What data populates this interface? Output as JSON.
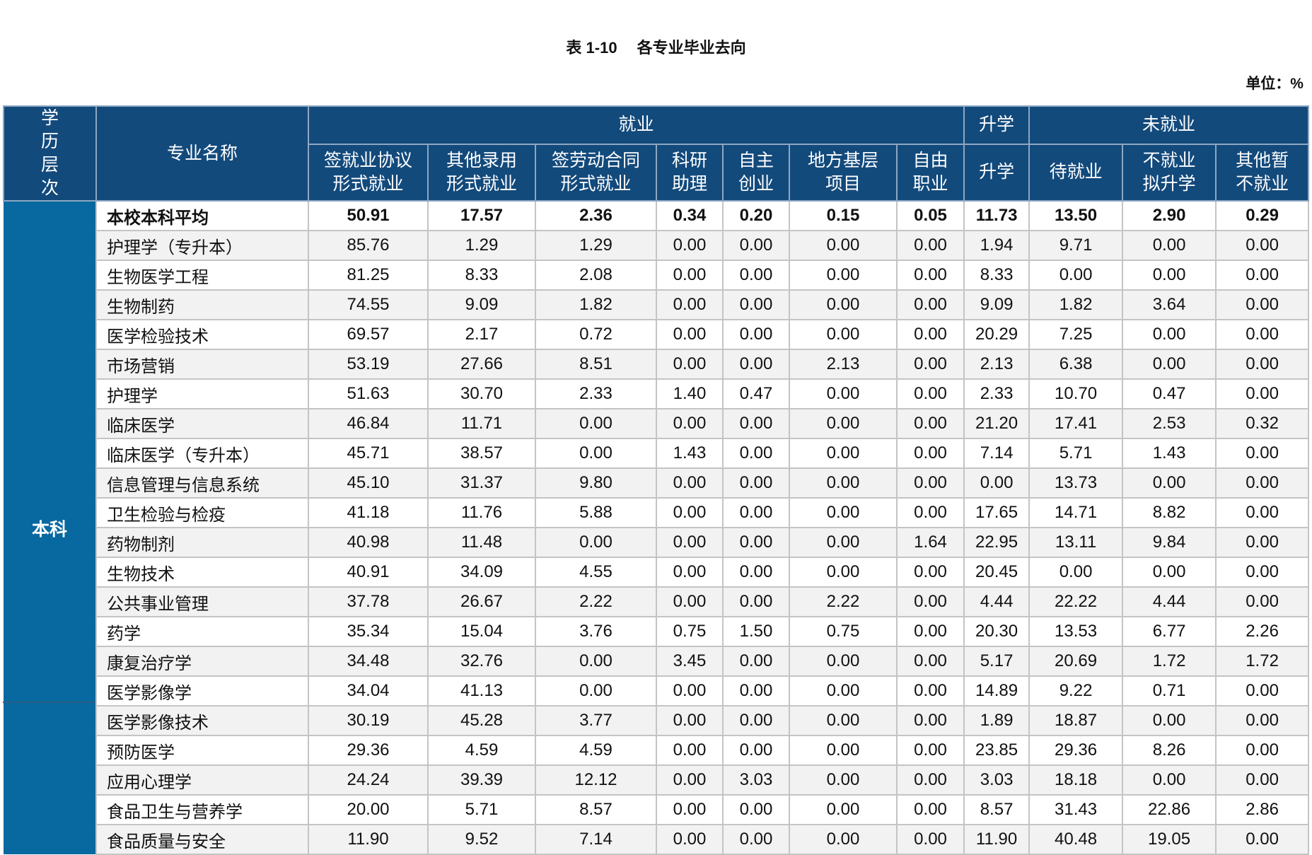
{
  "title": {
    "number": "表 1-10",
    "text": "各专业毕业去向"
  },
  "unit": "单位：%",
  "header": {
    "level": "学历层次",
    "major": "专业名称",
    "groups": [
      "就业",
      "升学",
      "未就业"
    ],
    "columns": [
      "签就业协议形式就业",
      "其他录用形式就业",
      "签劳动合同形式就业",
      "科研助理",
      "自主创业",
      "地方基层项目",
      "自由职业",
      "升学",
      "待就业",
      "不就业拟升学",
      "其他暂不就业"
    ]
  },
  "level_label": "本科",
  "rows": [
    {
      "name": "本校本科平均",
      "values": [
        "50.91",
        "17.57",
        "2.36",
        "0.34",
        "0.20",
        "0.15",
        "0.05",
        "11.73",
        "13.50",
        "2.90",
        "0.29"
      ]
    },
    {
      "name": "护理学（专升本）",
      "values": [
        "85.76",
        "1.29",
        "1.29",
        "0.00",
        "0.00",
        "0.00",
        "0.00",
        "1.94",
        "9.71",
        "0.00",
        "0.00"
      ]
    },
    {
      "name": "生物医学工程",
      "values": [
        "81.25",
        "8.33",
        "2.08",
        "0.00",
        "0.00",
        "0.00",
        "0.00",
        "8.33",
        "0.00",
        "0.00",
        "0.00"
      ]
    },
    {
      "name": "生物制药",
      "values": [
        "74.55",
        "9.09",
        "1.82",
        "0.00",
        "0.00",
        "0.00",
        "0.00",
        "9.09",
        "1.82",
        "3.64",
        "0.00"
      ]
    },
    {
      "name": "医学检验技术",
      "values": [
        "69.57",
        "2.17",
        "0.72",
        "0.00",
        "0.00",
        "0.00",
        "0.00",
        "20.29",
        "7.25",
        "0.00",
        "0.00"
      ]
    },
    {
      "name": "市场营销",
      "values": [
        "53.19",
        "27.66",
        "8.51",
        "0.00",
        "0.00",
        "2.13",
        "0.00",
        "2.13",
        "6.38",
        "0.00",
        "0.00"
      ]
    },
    {
      "name": "护理学",
      "values": [
        "51.63",
        "30.70",
        "2.33",
        "1.40",
        "0.47",
        "0.00",
        "0.00",
        "2.33",
        "10.70",
        "0.47",
        "0.00"
      ]
    },
    {
      "name": "临床医学",
      "values": [
        "46.84",
        "11.71",
        "0.00",
        "0.00",
        "0.00",
        "0.00",
        "0.00",
        "21.20",
        "17.41",
        "2.53",
        "0.32"
      ]
    },
    {
      "name": "临床医学（专升本）",
      "values": [
        "45.71",
        "38.57",
        "0.00",
        "1.43",
        "0.00",
        "0.00",
        "0.00",
        "7.14",
        "5.71",
        "1.43",
        "0.00"
      ]
    },
    {
      "name": "信息管理与信息系统",
      "values": [
        "45.10",
        "31.37",
        "9.80",
        "0.00",
        "0.00",
        "0.00",
        "0.00",
        "0.00",
        "13.73",
        "0.00",
        "0.00"
      ]
    },
    {
      "name": "卫生检验与检疫",
      "values": [
        "41.18",
        "11.76",
        "5.88",
        "0.00",
        "0.00",
        "0.00",
        "0.00",
        "17.65",
        "14.71",
        "8.82",
        "0.00"
      ]
    },
    {
      "name": "药物制剂",
      "values": [
        "40.98",
        "11.48",
        "0.00",
        "0.00",
        "0.00",
        "0.00",
        "1.64",
        "22.95",
        "13.11",
        "9.84",
        "0.00"
      ]
    },
    {
      "name": "生物技术",
      "values": [
        "40.91",
        "34.09",
        "4.55",
        "0.00",
        "0.00",
        "0.00",
        "0.00",
        "20.45",
        "0.00",
        "0.00",
        "0.00"
      ]
    },
    {
      "name": "公共事业管理",
      "values": [
        "37.78",
        "26.67",
        "2.22",
        "0.00",
        "0.00",
        "2.22",
        "0.00",
        "4.44",
        "22.22",
        "4.44",
        "0.00"
      ]
    },
    {
      "name": "药学",
      "values": [
        "35.34",
        "15.04",
        "3.76",
        "0.75",
        "1.50",
        "0.75",
        "0.00",
        "20.30",
        "13.53",
        "6.77",
        "2.26"
      ]
    },
    {
      "name": "康复治疗学",
      "values": [
        "34.48",
        "32.76",
        "0.00",
        "3.45",
        "0.00",
        "0.00",
        "0.00",
        "5.17",
        "20.69",
        "1.72",
        "1.72"
      ]
    },
    {
      "name": "医学影像学",
      "values": [
        "34.04",
        "41.13",
        "0.00",
        "0.00",
        "0.00",
        "0.00",
        "0.00",
        "14.89",
        "9.22",
        "0.71",
        "0.00"
      ]
    },
    {
      "name": "医学影像技术",
      "values": [
        "30.19",
        "45.28",
        "3.77",
        "0.00",
        "0.00",
        "0.00",
        "0.00",
        "1.89",
        "18.87",
        "0.00",
        "0.00"
      ]
    },
    {
      "name": "预防医学",
      "values": [
        "29.36",
        "4.59",
        "4.59",
        "0.00",
        "0.00",
        "0.00",
        "0.00",
        "23.85",
        "29.36",
        "8.26",
        "0.00"
      ]
    },
    {
      "name": "应用心理学",
      "values": [
        "24.24",
        "39.39",
        "12.12",
        "0.00",
        "3.03",
        "0.00",
        "0.00",
        "3.03",
        "18.18",
        "0.00",
        "0.00"
      ]
    },
    {
      "name": "食品卫生与营养学",
      "values": [
        "20.00",
        "5.71",
        "8.57",
        "0.00",
        "0.00",
        "0.00",
        "0.00",
        "8.57",
        "31.43",
        "22.86",
        "2.86"
      ]
    },
    {
      "name": "食品质量与安全",
      "values": [
        "11.90",
        "9.52",
        "7.14",
        "0.00",
        "0.00",
        "0.00",
        "0.00",
        "11.90",
        "40.48",
        "19.05",
        "0.00"
      ]
    }
  ],
  "colors": {
    "header_bg": "#134a7c",
    "level_bg": "#0868a0",
    "stripe": "#f2f2f2"
  }
}
